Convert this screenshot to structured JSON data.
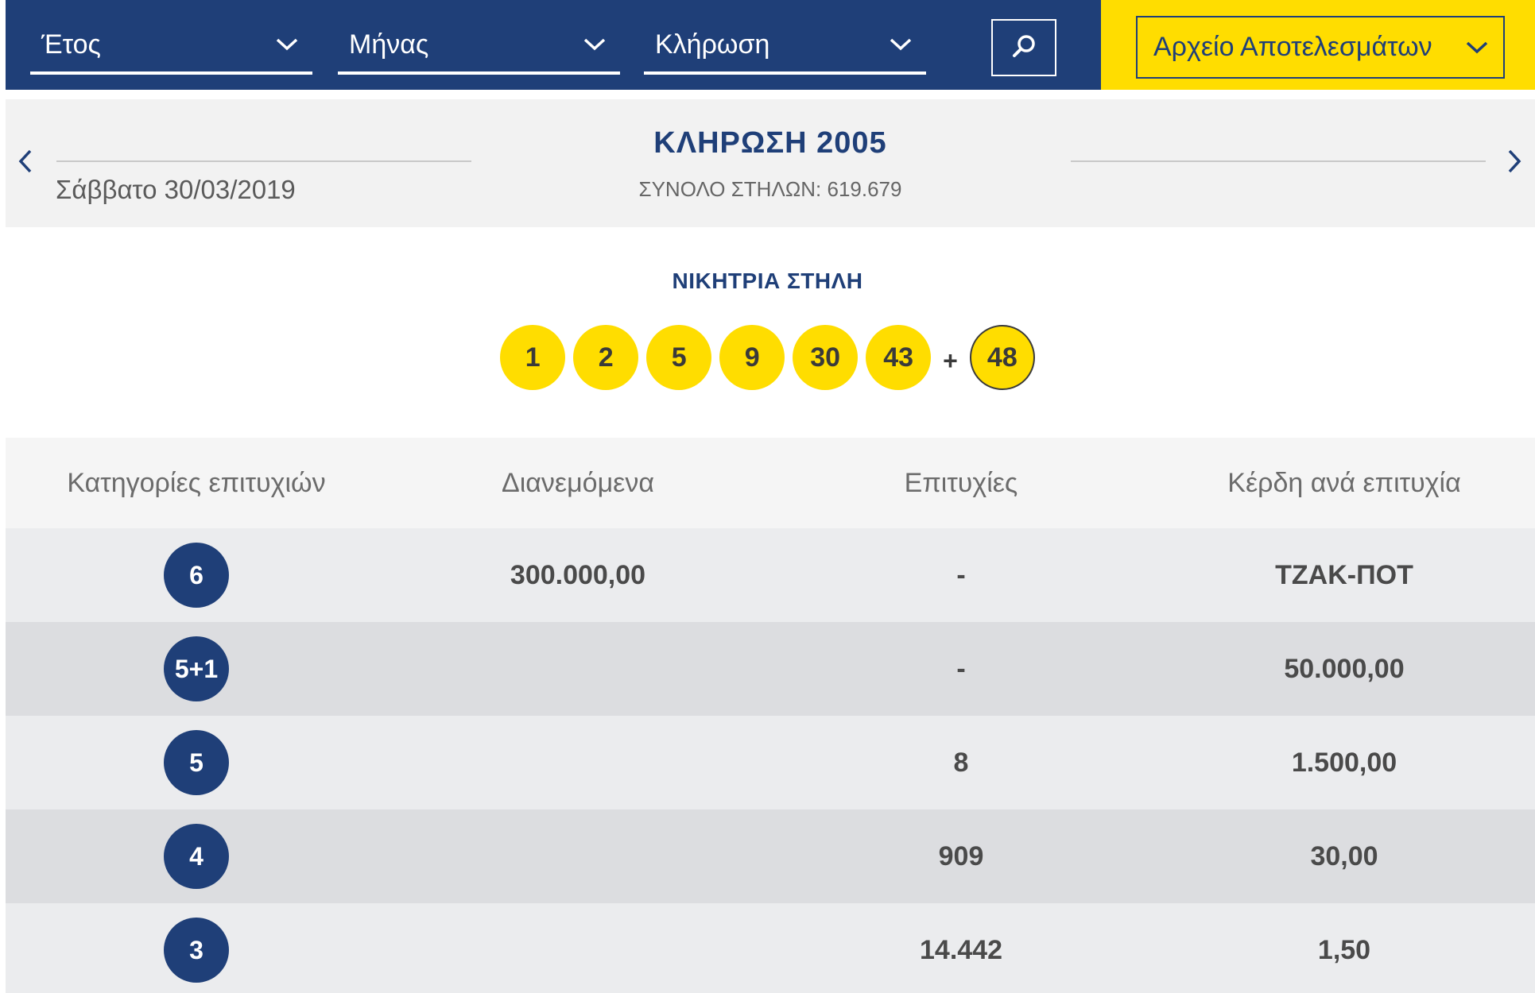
{
  "filters": {
    "year_label": "Έτος",
    "month_label": "Μήνας",
    "draw_label": "Κλήρωση",
    "archive_label": "Αρχείο Αποτελεσμάτων"
  },
  "draw": {
    "date": "Σάββατο 30/03/2019",
    "title": "ΚΛΗΡΩΣΗ 2005",
    "total_columns": "ΣΥΝΟΛΟ ΣΤΗΛΩΝ: 619.679"
  },
  "winning": {
    "title": "ΝΙΚΗΤΡΙΑ ΣΤΗΛΗ",
    "numbers": [
      "1",
      "2",
      "5",
      "9",
      "30",
      "43"
    ],
    "plus": "+",
    "bonus": "48"
  },
  "table": {
    "headers": [
      "Κατηγορίες επιτυχιών",
      "Διανεμόμενα",
      "Επιτυχίες",
      "Κέρδη ανά επιτυχία"
    ],
    "rows": [
      {
        "category": "6",
        "distributed": "300.000,00",
        "winners": "-",
        "prize": "ΤΖΑΚ-ΠΟΤ"
      },
      {
        "category": "5+1",
        "distributed": "",
        "winners": "-",
        "prize": "50.000,00"
      },
      {
        "category": "5",
        "distributed": "",
        "winners": "8",
        "prize": "1.500,00"
      },
      {
        "category": "4",
        "distributed": "",
        "winners": "909",
        "prize": "30,00"
      },
      {
        "category": "3",
        "distributed": "",
        "winners": "14.442",
        "prize": "1,50"
      }
    ]
  },
  "colors": {
    "navy": "#1f3f78",
    "yellow": "#ffdd00",
    "row_light": "#ebecee",
    "row_dark": "#dcdde0"
  },
  "icons": [
    "chevron-down-icon",
    "search-icon",
    "chevron-left-icon",
    "chevron-right-icon"
  ]
}
